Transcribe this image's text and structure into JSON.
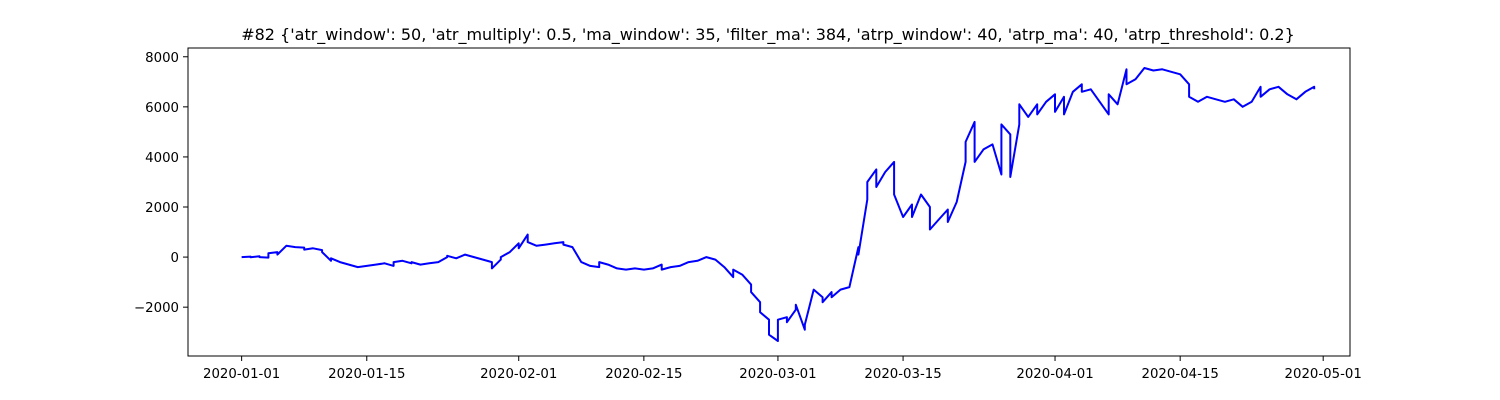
{
  "chart_data": {
    "type": "line",
    "title": "#82 {'atr_window': 50, 'atr_multiply': 0.5, 'ma_window': 35, 'filter_ma': 384, 'atrp_window': 40, 'atrp_ma': 40, 'atrp_threshold': 0.2}",
    "xlabel": "",
    "ylabel": "",
    "x_axis": {
      "type": "date",
      "range": [
        "2019-12-26",
        "2020-05-04"
      ],
      "ticks": [
        "2020-01-01",
        "2020-01-15",
        "2020-02-01",
        "2020-02-15",
        "2020-03-01",
        "2020-03-15",
        "2020-04-01",
        "2020-04-15",
        "2020-05-01"
      ]
    },
    "y_axis": {
      "range": [
        -3950,
        8350
      ],
      "ticks": [
        -2000,
        0,
        2000,
        4000,
        6000,
        8000
      ],
      "tick_labels": [
        "−2000",
        "0",
        "2000",
        "4000",
        "6000",
        "8000"
      ]
    },
    "grid": false,
    "legend": "none",
    "series": [
      {
        "color": "#0000ff",
        "points": [
          [
            "2020-01-01",
            0
          ],
          [
            "2020-01-02",
            20
          ],
          [
            "2020-01-02",
            -10
          ],
          [
            "2020-01-03",
            30
          ],
          [
            "2020-01-03",
            0
          ],
          [
            "2020-01-04",
            -20
          ],
          [
            "2020-01-04",
            150
          ],
          [
            "2020-01-05",
            200
          ],
          [
            "2020-01-05",
            100
          ],
          [
            "2020-01-06",
            450
          ],
          [
            "2020-01-07",
            400
          ],
          [
            "2020-01-08",
            380
          ],
          [
            "2020-01-08",
            300
          ],
          [
            "2020-01-09",
            350
          ],
          [
            "2020-01-10",
            280
          ],
          [
            "2020-01-10",
            200
          ],
          [
            "2020-01-11",
            -150
          ],
          [
            "2020-01-11",
            -50
          ],
          [
            "2020-01-12",
            -200
          ],
          [
            "2020-01-13",
            -300
          ],
          [
            "2020-01-14",
            -400
          ],
          [
            "2020-01-15",
            -350
          ],
          [
            "2020-01-16",
            -300
          ],
          [
            "2020-01-17",
            -250
          ],
          [
            "2020-01-18",
            -350
          ],
          [
            "2020-01-18",
            -200
          ],
          [
            "2020-01-19",
            -150
          ],
          [
            "2020-01-20",
            -250
          ],
          [
            "2020-01-20",
            -200
          ],
          [
            "2020-01-21",
            -300
          ],
          [
            "2020-01-22",
            -250
          ],
          [
            "2020-01-23",
            -200
          ],
          [
            "2020-01-24",
            0
          ],
          [
            "2020-01-24",
            50
          ],
          [
            "2020-01-25",
            -50
          ],
          [
            "2020-01-26",
            100
          ],
          [
            "2020-01-27",
            0
          ],
          [
            "2020-01-28",
            -100
          ],
          [
            "2020-01-29",
            -200
          ],
          [
            "2020-01-29",
            -450
          ],
          [
            "2020-01-30",
            -100
          ],
          [
            "2020-01-30",
            0
          ],
          [
            "2020-01-31",
            200
          ],
          [
            "2020-02-01",
            550
          ],
          [
            "2020-02-01",
            350
          ],
          [
            "2020-02-02",
            900
          ],
          [
            "2020-02-02",
            600
          ],
          [
            "2020-02-03",
            450
          ],
          [
            "2020-02-04",
            500
          ],
          [
            "2020-02-05",
            550
          ],
          [
            "2020-02-06",
            600
          ],
          [
            "2020-02-06",
            500
          ],
          [
            "2020-02-07",
            400
          ],
          [
            "2020-02-08",
            -200
          ],
          [
            "2020-02-09",
            -350
          ],
          [
            "2020-02-10",
            -400
          ],
          [
            "2020-02-10",
            -200
          ],
          [
            "2020-02-11",
            -300
          ],
          [
            "2020-02-12",
            -450
          ],
          [
            "2020-02-13",
            -500
          ],
          [
            "2020-02-14",
            -450
          ],
          [
            "2020-02-15",
            -500
          ],
          [
            "2020-02-16",
            -450
          ],
          [
            "2020-02-17",
            -300
          ],
          [
            "2020-02-17",
            -500
          ],
          [
            "2020-02-18",
            -400
          ],
          [
            "2020-02-19",
            -350
          ],
          [
            "2020-02-20",
            -200
          ],
          [
            "2020-02-21",
            -150
          ],
          [
            "2020-02-22",
            0
          ],
          [
            "2020-02-23",
            -100
          ],
          [
            "2020-02-24",
            -400
          ],
          [
            "2020-02-25",
            -800
          ],
          [
            "2020-02-25",
            -500
          ],
          [
            "2020-02-26",
            -700
          ],
          [
            "2020-02-27",
            -1100
          ],
          [
            "2020-02-27",
            -1400
          ],
          [
            "2020-02-28",
            -1800
          ],
          [
            "2020-02-28",
            -2200
          ],
          [
            "2020-02-29",
            -2500
          ],
          [
            "2020-02-29",
            -3100
          ],
          [
            "2020-03-01",
            -3350
          ],
          [
            "2020-03-01",
            -2500
          ],
          [
            "2020-03-02",
            -2400
          ],
          [
            "2020-03-02",
            -2600
          ],
          [
            "2020-03-03",
            -2100
          ],
          [
            "2020-03-03",
            -1900
          ],
          [
            "2020-03-04",
            -2900
          ],
          [
            "2020-03-04",
            -2700
          ],
          [
            "2020-03-05",
            -1300
          ],
          [
            "2020-03-06",
            -1600
          ],
          [
            "2020-03-06",
            -1800
          ],
          [
            "2020-03-07",
            -1400
          ],
          [
            "2020-03-07",
            -1600
          ],
          [
            "2020-03-08",
            -1300
          ],
          [
            "2020-03-09",
            -1200
          ],
          [
            "2020-03-10",
            400
          ],
          [
            "2020-03-10",
            100
          ],
          [
            "2020-03-11",
            2300
          ],
          [
            "2020-03-11",
            3000
          ],
          [
            "2020-03-12",
            3500
          ],
          [
            "2020-03-12",
            2800
          ],
          [
            "2020-03-13",
            3400
          ],
          [
            "2020-03-14",
            3800
          ],
          [
            "2020-03-14",
            2500
          ],
          [
            "2020-03-15",
            1600
          ],
          [
            "2020-03-16",
            2100
          ],
          [
            "2020-03-16",
            1600
          ],
          [
            "2020-03-17",
            2500
          ],
          [
            "2020-03-18",
            2000
          ],
          [
            "2020-03-18",
            1100
          ],
          [
            "2020-03-19",
            1500
          ],
          [
            "2020-03-20",
            1900
          ],
          [
            "2020-03-20",
            1400
          ],
          [
            "2020-03-21",
            2200
          ],
          [
            "2020-03-22",
            3800
          ],
          [
            "2020-03-22",
            4600
          ],
          [
            "2020-03-23",
            5400
          ],
          [
            "2020-03-23",
            3800
          ],
          [
            "2020-03-24",
            4300
          ],
          [
            "2020-03-25",
            4500
          ],
          [
            "2020-03-26",
            3300
          ],
          [
            "2020-03-26",
            5300
          ],
          [
            "2020-03-27",
            4900
          ],
          [
            "2020-03-27",
            3200
          ],
          [
            "2020-03-28",
            5300
          ],
          [
            "2020-03-28",
            6100
          ],
          [
            "2020-03-29",
            5600
          ],
          [
            "2020-03-30",
            6100
          ],
          [
            "2020-03-30",
            5700
          ],
          [
            "2020-03-31",
            6200
          ],
          [
            "2020-04-01",
            6500
          ],
          [
            "2020-04-01",
            5800
          ],
          [
            "2020-04-02",
            6400
          ],
          [
            "2020-04-02",
            5700
          ],
          [
            "2020-04-03",
            6600
          ],
          [
            "2020-04-04",
            6900
          ],
          [
            "2020-04-04",
            6600
          ],
          [
            "2020-04-05",
            6700
          ],
          [
            "2020-04-06",
            6200
          ],
          [
            "2020-04-07",
            5700
          ],
          [
            "2020-04-07",
            6500
          ],
          [
            "2020-04-08",
            6100
          ],
          [
            "2020-04-09",
            7500
          ],
          [
            "2020-04-09",
            6900
          ],
          [
            "2020-04-10",
            7100
          ],
          [
            "2020-04-11",
            7550
          ],
          [
            "2020-04-12",
            7450
          ],
          [
            "2020-04-13",
            7500
          ],
          [
            "2020-04-14",
            7400
          ],
          [
            "2020-04-15",
            7300
          ],
          [
            "2020-04-16",
            6900
          ],
          [
            "2020-04-16",
            6400
          ],
          [
            "2020-04-17",
            6200
          ],
          [
            "2020-04-18",
            6400
          ],
          [
            "2020-04-19",
            6300
          ],
          [
            "2020-04-20",
            6200
          ],
          [
            "2020-04-21",
            6300
          ],
          [
            "2020-04-22",
            6000
          ],
          [
            "2020-04-23",
            6200
          ],
          [
            "2020-04-24",
            6800
          ],
          [
            "2020-04-24",
            6400
          ],
          [
            "2020-04-25",
            6700
          ],
          [
            "2020-04-26",
            6800
          ],
          [
            "2020-04-27",
            6500
          ],
          [
            "2020-04-28",
            6300
          ],
          [
            "2020-04-29",
            6600
          ],
          [
            "2020-04-30",
            6800
          ],
          [
            "2020-04-30",
            6700
          ]
        ]
      }
    ]
  }
}
